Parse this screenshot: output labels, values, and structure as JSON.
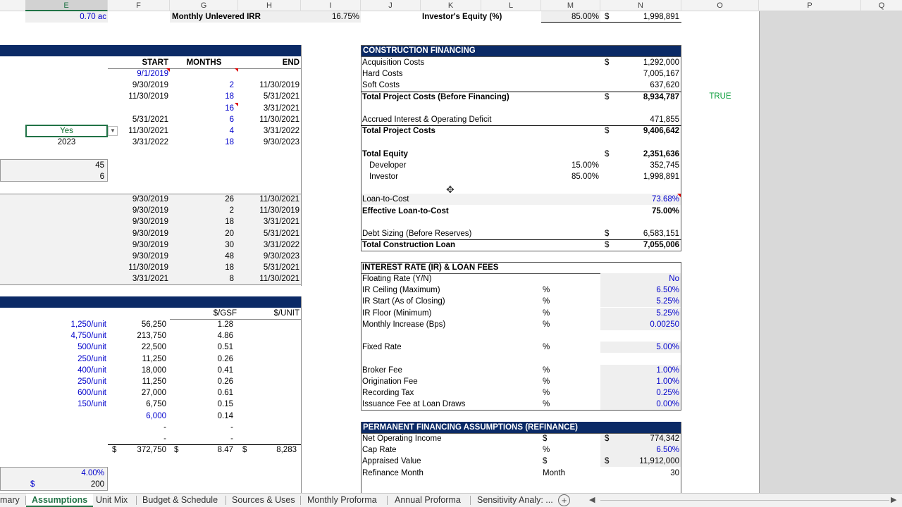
{
  "columns": [
    "E",
    "F",
    "G",
    "H",
    "I",
    "J",
    "K",
    "L",
    "M",
    "N",
    "O",
    "P",
    "Q"
  ],
  "top_row": {
    "e_value": "0.70 ac",
    "label1": "Monthly Unlevered IRR",
    "val1": "16.75%",
    "label2": "Investor's Equity (%)",
    "pct2": "85.00%",
    "dollar": "$",
    "amt2": "1,998,891"
  },
  "schedule": {
    "headers": [
      "START",
      "MONTHS",
      "END"
    ],
    "rows": [
      {
        "e": "",
        "start": "9/1/2019",
        "months": "",
        "end": ""
      },
      {
        "e": "",
        "start": "9/30/2019",
        "months": "2",
        "end": "11/30/2019"
      },
      {
        "e": "",
        "start": "11/30/2019",
        "months": "18",
        "end": "5/31/2021"
      },
      {
        "e": "",
        "start": "",
        "months": "16",
        "end": "3/31/2021"
      },
      {
        "e": "",
        "start": "5/31/2021",
        "months": "6",
        "end": "11/30/2021"
      },
      {
        "e": "Yes",
        "start": "11/30/2021",
        "months": "4",
        "end": "3/31/2022"
      },
      {
        "e": "2023",
        "start": "3/31/2022",
        "months": "18",
        "end": "9/30/2023"
      }
    ],
    "extra_values": [
      "45",
      "6"
    ],
    "rows2": [
      {
        "start": "9/30/2019",
        "months": "26",
        "end": "11/30/2021"
      },
      {
        "start": "9/30/2019",
        "months": "2",
        "end": "11/30/2019"
      },
      {
        "start": "9/30/2019",
        "months": "18",
        "end": "3/31/2021"
      },
      {
        "start": "9/30/2019",
        "months": "20",
        "end": "5/31/2021"
      },
      {
        "start": "9/30/2019",
        "months": "30",
        "end": "3/31/2022"
      },
      {
        "start": "9/30/2019",
        "months": "48",
        "end": "9/30/2023"
      },
      {
        "start": "11/30/2019",
        "months": "18",
        "end": "5/31/2021"
      },
      {
        "start": "3/31/2021",
        "months": "8",
        "end": "11/30/2021"
      }
    ]
  },
  "costs": {
    "headers": [
      "$/GSF",
      "$/UNIT"
    ],
    "rows": [
      {
        "unit": "1,250/unit",
        "amt": "56,250",
        "gsf": "1.28"
      },
      {
        "unit": "4,750/unit",
        "amt": "213,750",
        "gsf": "4.86"
      },
      {
        "unit": "500/unit",
        "amt": "22,500",
        "gsf": "0.51"
      },
      {
        "unit": "250/unit",
        "amt": "11,250",
        "gsf": "0.26"
      },
      {
        "unit": "400/unit",
        "amt": "18,000",
        "gsf": "0.41"
      },
      {
        "unit": "250/unit",
        "amt": "11,250",
        "gsf": "0.26"
      },
      {
        "unit": "600/unit",
        "amt": "27,000",
        "gsf": "0.61"
      },
      {
        "unit": "150/unit",
        "amt": "6,750",
        "gsf": "0.15"
      },
      {
        "unit": "",
        "amt": "6,000",
        "gsf": "0.14"
      },
      {
        "unit": "",
        "amt": "-",
        "gsf": "-"
      },
      {
        "unit": "",
        "amt": "-",
        "gsf": "-"
      }
    ],
    "total": {
      "d1": "$",
      "amt": "372,750",
      "d2": "$",
      "gsf": "8.47",
      "d3": "$",
      "unit": "8,283"
    },
    "bottom_pct": "4.00%",
    "bottom_dollar": "$",
    "bottom_amt": "200"
  },
  "construction": {
    "title": "CONSTRUCTION FINANCING",
    "rows": [
      {
        "label": "Acquisition Costs",
        "pct": "",
        "dollar": "$",
        "amt": "1,292,000",
        "bold": false
      },
      {
        "label": "Hard Costs",
        "pct": "",
        "dollar": "",
        "amt": "7,005,167",
        "bold": false
      },
      {
        "label": "Soft Costs",
        "pct": "",
        "dollar": "",
        "amt": "637,620",
        "bold": false
      },
      {
        "label": "Total Project Costs (Before Financing)",
        "pct": "",
        "dollar": "$",
        "amt": "8,934,787",
        "bold": true
      },
      {
        "label": "",
        "pct": "",
        "dollar": "",
        "amt": "",
        "bold": false
      },
      {
        "label": "Accrued Interest & Operating Deficit",
        "pct": "",
        "dollar": "",
        "amt": "471,855",
        "bold": false
      },
      {
        "label": "Total Project Costs",
        "pct": "",
        "dollar": "$",
        "amt": "9,406,642",
        "bold": true
      },
      {
        "label": "",
        "pct": "",
        "dollar": "",
        "amt": "",
        "bold": false
      },
      {
        "label": "Total Equity",
        "pct": "",
        "dollar": "$",
        "amt": "2,351,636",
        "bold": true
      },
      {
        "label": "Developer",
        "pct": "15.00%",
        "dollar": "",
        "amt": "352,745",
        "bold": false
      },
      {
        "label": "Investor",
        "pct": "85.00%",
        "dollar": "",
        "amt": "1,998,891",
        "bold": false
      },
      {
        "label": "",
        "pct": "",
        "dollar": "",
        "amt": "",
        "bold": false
      },
      {
        "label": "Loan-to-Cost",
        "pct": "",
        "dollar": "",
        "amt": "73.68%",
        "bold": false
      },
      {
        "label": "Effective Loan-to-Cost",
        "pct": "",
        "dollar": "",
        "amt": "75.00%",
        "bold": true
      },
      {
        "label": "",
        "pct": "",
        "dollar": "",
        "amt": "",
        "bold": false
      },
      {
        "label": "Debt Sizing (Before Reserves)",
        "pct": "",
        "dollar": "$",
        "amt": "6,583,151",
        "bold": false
      },
      {
        "label": "Total Construction Loan",
        "pct": "",
        "dollar": "$",
        "amt": "7,055,006",
        "bold": true
      }
    ],
    "true_flag": "TRUE"
  },
  "interest": {
    "title": "INTEREST RATE (IR) & LOAN FEES",
    "rows": [
      {
        "label": "Floating Rate (Y/N)",
        "unit": "",
        "val": "No"
      },
      {
        "label": "IR Ceiling (Maximum)",
        "unit": "%",
        "val": "6.50%"
      },
      {
        "label": "IR Start (As of Closing)",
        "unit": "%",
        "val": "5.25%"
      },
      {
        "label": "IR Floor (Minimum)",
        "unit": "%",
        "val": "5.25%"
      },
      {
        "label": "Monthly Increase (Bps)",
        "unit": "%",
        "val": "0.00250"
      },
      {
        "label": "",
        "unit": "",
        "val": ""
      },
      {
        "label": "Fixed Rate",
        "unit": "%",
        "val": "5.00%"
      },
      {
        "label": "",
        "unit": "",
        "val": ""
      },
      {
        "label": "Broker Fee",
        "unit": "%",
        "val": "1.00%"
      },
      {
        "label": "Origination Fee",
        "unit": "%",
        "val": "1.00%"
      },
      {
        "label": "Recording Tax",
        "unit": "%",
        "val": "0.25%"
      },
      {
        "label": "Issuance Fee at Loan Draws",
        "unit": "%",
        "val": "0.00%"
      }
    ]
  },
  "permanent": {
    "title": "PERMANENT FINANCING ASSUMPTIONS (REFINANCE)",
    "rows": [
      {
        "label": "Net Operating Income",
        "unit": "$",
        "dollar": "$",
        "val": "774,342"
      },
      {
        "label": "Cap Rate",
        "unit": "%",
        "dollar": "",
        "val": "6.50%"
      },
      {
        "label": "Appraised Value",
        "unit": "$",
        "dollar": "$",
        "val": "11,912,000"
      },
      {
        "label": "Refinance Month",
        "unit": "Month",
        "dollar": "",
        "val": "30"
      }
    ]
  },
  "tabs": [
    "mary",
    "Assumptions",
    "Unit Mix",
    "Budget & Schedule",
    "Sources & Uses",
    "Monthly Proforma",
    "Annual Proforma",
    "Sensitivity Analy: ..."
  ],
  "active_tab": "Assumptions"
}
